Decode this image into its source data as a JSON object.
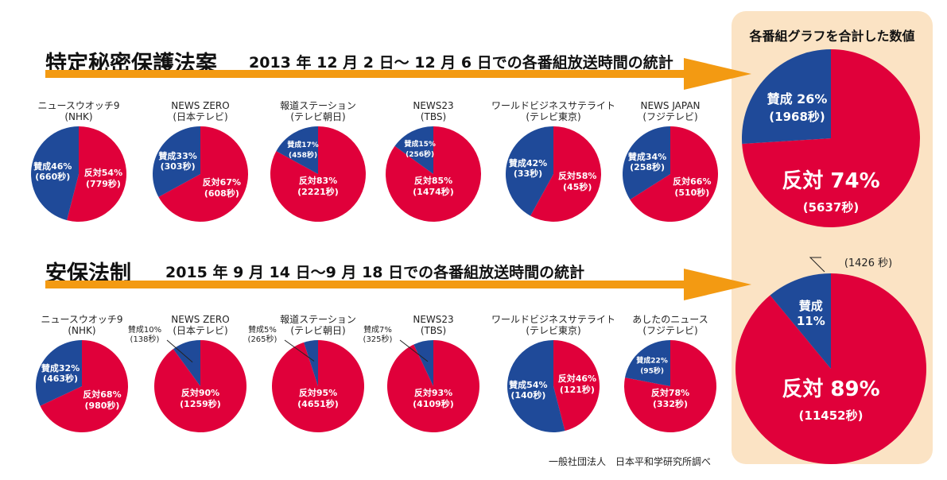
{
  "summary": {
    "title": "各番組グラフを合計した数値"
  },
  "sections": [
    {
      "title": "特定秘密保護法案",
      "subtitle": "2013 年 12 月 2 日～ 12 月 6 日での各番組放送時間の統計"
    },
    {
      "title": "安保法制",
      "subtitle": "2015 年 9 月 14 日～9 月 18 日での各番組放送時間の統計"
    }
  ],
  "credit": "一般社団法人　日本平和学研究所調べ",
  "colors": {
    "support": "#1f4a99",
    "oppose": "#e0003a",
    "arrow": "#f39a12",
    "panel": "#fbe3c4"
  },
  "chart_data": [
    {
      "type": "pie",
      "title": "ニュースウオッチ9",
      "subtitle": "(NHK)",
      "slices": [
        {
          "name": "反対",
          "percent": 54,
          "seconds": 779
        },
        {
          "name": "賛成",
          "percent": 46,
          "seconds": 660
        }
      ]
    },
    {
      "type": "pie",
      "title": "NEWS ZERO",
      "subtitle": "(日本テレビ)",
      "slices": [
        {
          "name": "反対",
          "percent": 67,
          "seconds": 608
        },
        {
          "name": "賛成",
          "percent": 33,
          "seconds": 303
        }
      ]
    },
    {
      "type": "pie",
      "title": "報道ステーション",
      "subtitle": "(テレビ朝日)",
      "slices": [
        {
          "name": "反対",
          "percent": 83,
          "seconds": 2221
        },
        {
          "name": "賛成",
          "percent": 17,
          "seconds": 458
        }
      ]
    },
    {
      "type": "pie",
      "title": "NEWS23",
      "subtitle": "(TBS)",
      "slices": [
        {
          "name": "反対",
          "percent": 85,
          "seconds": 1474
        },
        {
          "name": "賛成",
          "percent": 15,
          "seconds": 256
        }
      ]
    },
    {
      "type": "pie",
      "title": "ワールドビジネスサテライト",
      "subtitle": "(テレビ東京)",
      "slices": [
        {
          "name": "反対",
          "percent": 58,
          "seconds": 45
        },
        {
          "name": "賛成",
          "percent": 42,
          "seconds": 33
        }
      ]
    },
    {
      "type": "pie",
      "title": "NEWS JAPAN",
      "subtitle": "(フジテレビ)",
      "slices": [
        {
          "name": "反対",
          "percent": 66,
          "seconds": 510
        },
        {
          "name": "賛成",
          "percent": 34,
          "seconds": 258
        }
      ]
    },
    {
      "type": "pie",
      "title": "",
      "subtitle": "",
      "slices": [
        {
          "name": "反対",
          "percent": 74,
          "seconds": 5637
        },
        {
          "name": "賛成",
          "percent": 26,
          "seconds": 1968
        }
      ]
    },
    {
      "type": "pie",
      "title": "ニュースウオッチ9",
      "subtitle": "(NHK)",
      "slices": [
        {
          "name": "反対",
          "percent": 68,
          "seconds": 980
        },
        {
          "name": "賛成",
          "percent": 32,
          "seconds": 463
        }
      ]
    },
    {
      "type": "pie",
      "title": "NEWS ZERO",
      "subtitle": "(日本テレビ)",
      "slices": [
        {
          "name": "反対",
          "percent": 90,
          "seconds": 1259
        },
        {
          "name": "賛成",
          "percent": 10,
          "seconds": 138
        }
      ]
    },
    {
      "type": "pie",
      "title": "報道ステーション",
      "subtitle": "(テレビ朝日)",
      "slices": [
        {
          "name": "反対",
          "percent": 95,
          "seconds": 4651
        },
        {
          "name": "賛成",
          "percent": 5,
          "seconds": 265
        }
      ]
    },
    {
      "type": "pie",
      "title": "NEWS23",
      "subtitle": "(TBS)",
      "slices": [
        {
          "name": "反対",
          "percent": 93,
          "seconds": 4109
        },
        {
          "name": "賛成",
          "percent": 7,
          "seconds": 325
        }
      ]
    },
    {
      "type": "pie",
      "title": "ワールドビジネスサテライト",
      "subtitle": "(テレビ東京)",
      "slices": [
        {
          "name": "反対",
          "percent": 46,
          "seconds": 121
        },
        {
          "name": "賛成",
          "percent": 54,
          "seconds": 140
        }
      ]
    },
    {
      "type": "pie",
      "title": "あしたのニュース",
      "subtitle": "(フジテレビ)",
      "slices": [
        {
          "name": "反対",
          "percent": 78,
          "seconds": 332
        },
        {
          "name": "賛成",
          "percent": 22,
          "seconds": 95
        }
      ]
    },
    {
      "type": "pie",
      "title": "",
      "subtitle": "",
      "slices": [
        {
          "name": "反対",
          "percent": 89,
          "seconds": 11452
        },
        {
          "name": "賛成",
          "percent": 11,
          "seconds": 1426
        }
      ]
    }
  ]
}
